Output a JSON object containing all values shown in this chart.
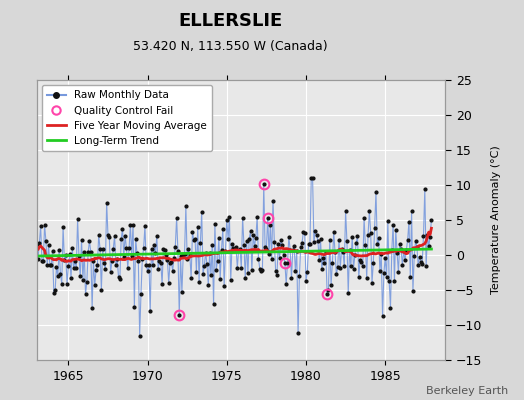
{
  "title": "ELLERSLIE",
  "subtitle": "53.420 N, 113.550 W (Canada)",
  "ylabel": "Temperature Anomaly (°C)",
  "watermark": "Berkeley Earth",
  "xlim": [
    1963.0,
    1988.8
  ],
  "ylim": [
    -15,
    25
  ],
  "yticks": [
    -15,
    -10,
    -5,
    0,
    5,
    10,
    15,
    20,
    25
  ],
  "xticks": [
    1965,
    1970,
    1975,
    1980,
    1985
  ],
  "bg_color": "#d8d8d8",
  "plot_bg_color": "#e8e8e8",
  "raw_line_color": "#7799dd",
  "raw_dot_color": "#111111",
  "ma_color": "#dd2222",
  "trend_color": "#22cc22",
  "qc_color": "#ff44aa",
  "seed": 42,
  "n_months": 300,
  "start_year": 1963.0
}
